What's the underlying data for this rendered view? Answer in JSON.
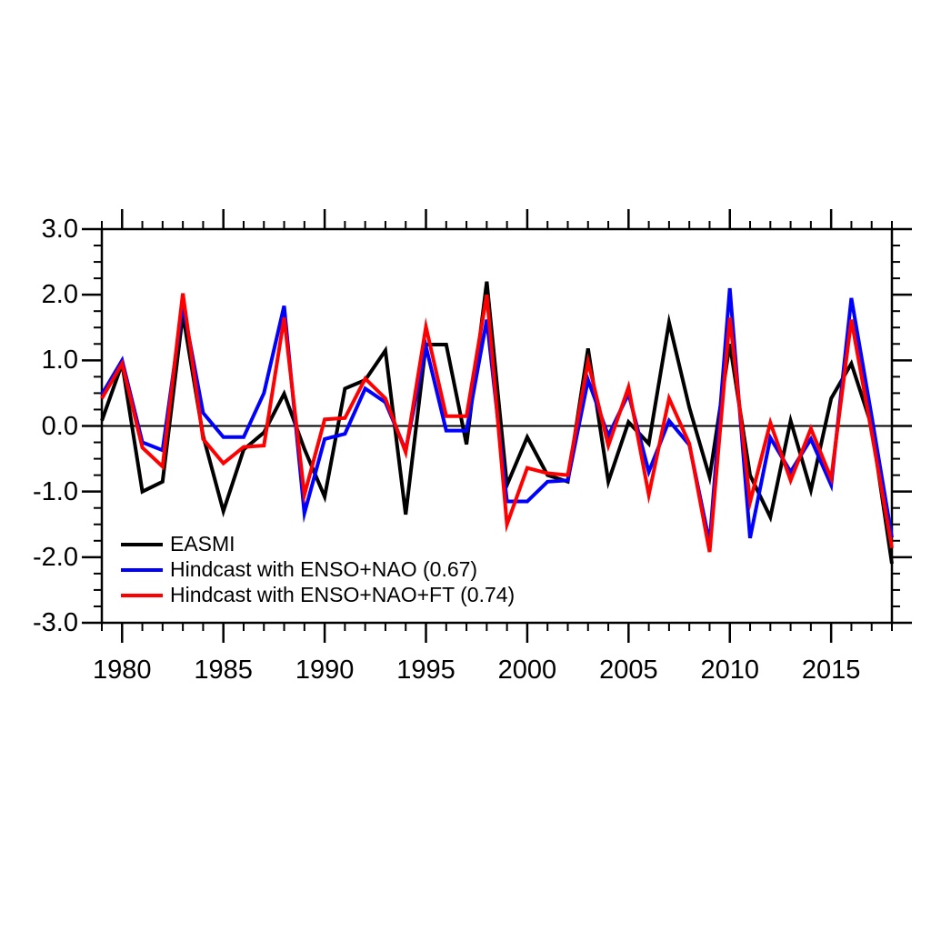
{
  "chart_data": {
    "type": "line",
    "title": "",
    "xlabel": "",
    "ylabel": "",
    "xlim": [
      1979,
      2018
    ],
    "ylim": [
      -3.0,
      3.0
    ],
    "grid": false,
    "zero_line": true,
    "legend_position": "lower-left-inside",
    "x_major_ticks": [
      1980,
      1985,
      1990,
      1995,
      2000,
      2005,
      2010,
      2015
    ],
    "x_tick_labels": [
      "1980",
      "1985",
      "1990",
      "1995",
      "2000",
      "2005",
      "2010",
      "2015"
    ],
    "x_minor_step": 1,
    "y_major_ticks": [
      -3,
      -2,
      -1,
      0,
      1,
      2,
      3
    ],
    "y_tick_labels": [
      "-3.0",
      "-2.0",
      "-1.0",
      "0.0",
      "1.0",
      "2.0",
      "3.0"
    ],
    "y_minor_step": 0.25,
    "x": [
      1979,
      1980,
      1981,
      1982,
      1983,
      1984,
      1985,
      1986,
      1987,
      1988,
      1989,
      1990,
      1991,
      1992,
      1993,
      1994,
      1995,
      1996,
      1997,
      1998,
      1999,
      2000,
      2001,
      2002,
      2003,
      2004,
      2005,
      2006,
      2007,
      2008,
      2009,
      2010,
      2011,
      2012,
      2013,
      2014,
      2015,
      2016,
      2017,
      2018
    ],
    "series": [
      {
        "name": "EASMI",
        "color": "#000000",
        "values": [
          0.08,
          0.95,
          -1.0,
          -0.85,
          1.7,
          -0.15,
          -1.3,
          -0.36,
          -0.1,
          0.49,
          -0.35,
          -1.08,
          0.57,
          0.7,
          1.15,
          -1.35,
          1.24,
          1.24,
          -0.28,
          2.2,
          -0.9,
          -0.17,
          -0.75,
          -0.85,
          1.18,
          -0.85,
          0.06,
          -0.27,
          1.58,
          0.28,
          -0.78,
          1.25,
          -0.75,
          -1.39,
          0.08,
          -0.98,
          0.42,
          0.95,
          0.0,
          -2.1
        ]
      },
      {
        "name": "Hindcast with ENSO+NAO (0.67)",
        "color": "#0000ff",
        "values": [
          0.48,
          1.0,
          -0.25,
          -0.37,
          1.85,
          0.2,
          -0.17,
          -0.17,
          0.5,
          1.83,
          -1.33,
          -0.2,
          -0.12,
          0.57,
          0.36,
          -0.37,
          1.21,
          -0.07,
          -0.07,
          1.62,
          -1.15,
          -1.15,
          -0.85,
          -0.83,
          0.7,
          -0.15,
          0.49,
          -0.7,
          0.08,
          -0.29,
          -1.78,
          2.1,
          -1.71,
          -0.18,
          -0.7,
          -0.2,
          -0.9,
          1.95,
          0.15,
          -1.7
        ]
      },
      {
        "name": "Hindcast with ENSO+NAO+FT (0.74)",
        "color": "#ff0000",
        "values": [
          0.42,
          0.95,
          -0.33,
          -0.62,
          2.02,
          -0.2,
          -0.57,
          -0.32,
          -0.3,
          1.65,
          -1.05,
          0.1,
          0.12,
          0.72,
          0.42,
          -0.4,
          1.51,
          0.15,
          0.15,
          2.0,
          -1.5,
          -0.64,
          -0.72,
          -0.75,
          0.98,
          -0.3,
          0.59,
          -1.05,
          0.42,
          -0.27,
          -1.92,
          1.65,
          -1.16,
          0.05,
          -0.83,
          -0.04,
          -0.8,
          1.62,
          -0.1,
          -1.86
        ]
      }
    ]
  }
}
